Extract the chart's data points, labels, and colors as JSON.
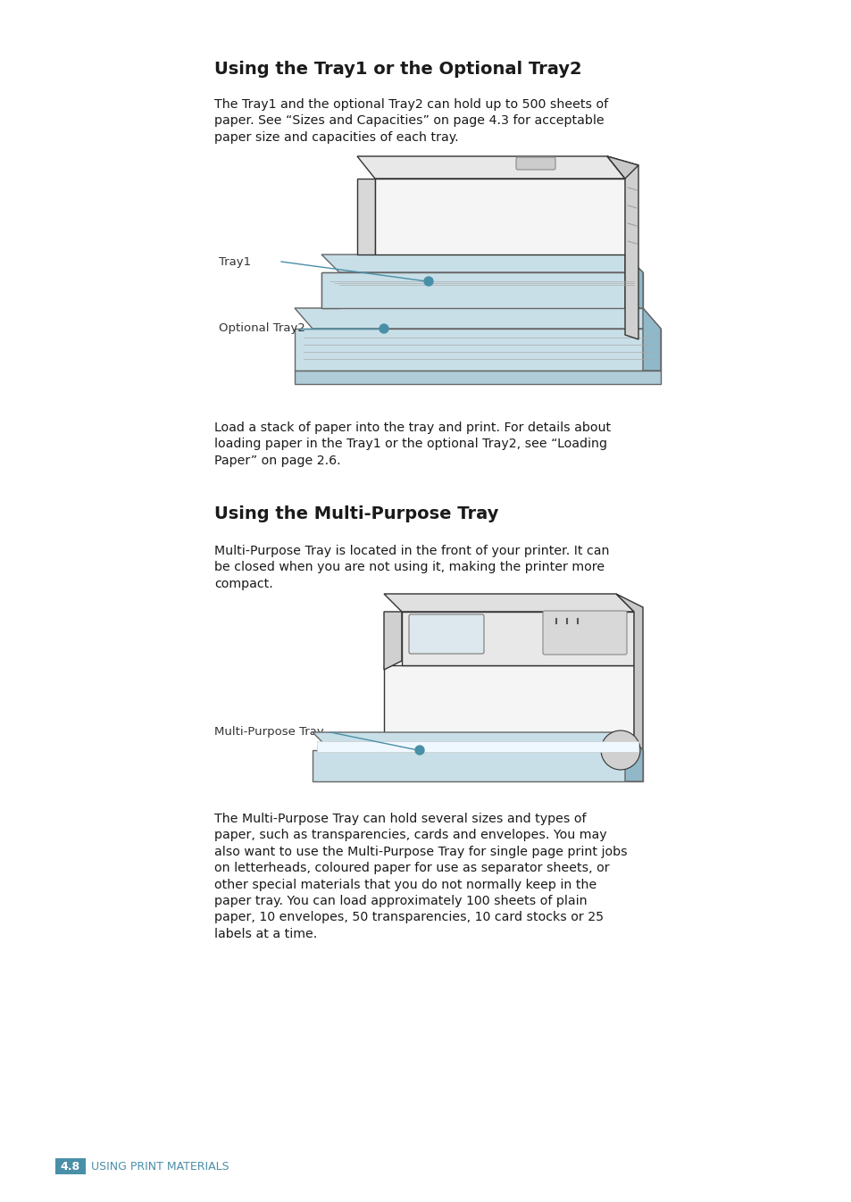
{
  "bg_color": "#ffffff",
  "page_width": 9.54,
  "page_height": 13.46,
  "section1_title": "Using the Tray1 or the Optional Tray2",
  "section1_body1": "The Tray1 and the optional Tray2 can hold up to 500 sheets of\npaper. See “Sizes and Capacities” on page 4.3 for acceptable\npaper size and capacities of each tray.",
  "label_tray1": "Tray1",
  "label_opt_tray2": "Optional Tray2",
  "section1_body2": "Load a stack of paper into the tray and print. For details about\nloading paper in the Tray1 or the optional Tray2, see “Loading\nPaper” on page 2.6.",
  "section2_title": "Using the Multi-Purpose Tray",
  "section2_body1": "Multi-Purpose Tray is located in the front of your printer. It can\nbe closed when you are not using it, making the printer more\ncompact.",
  "label_mpt": "Multi-Purpose Tray",
  "section2_body2": "The Multi-Purpose Tray can hold several sizes and types of\npaper, such as transparencies, cards and envelopes. You may\nalso want to use the Multi-Purpose Tray for single page print jobs\non letterheads, coloured paper for use as separator sheets, or\nother special materials that you do not normally keep in the\npaper tray. You can load approximately 100 sheets of plain\npaper, 10 envelopes, 50 transparencies, 10 card stocks or 25\nlabels at a time.",
  "footer_num": "4.8",
  "footer_text": "USING PRINT MATERIALS",
  "footer_num_bg": "#4a8fa8",
  "footer_num_color": "#ffffff",
  "footer_text_color": "#4a8fa8",
  "title_fontsize": 14,
  "body_fontsize": 10.2,
  "label_fontsize": 9.5,
  "footer_fontsize": 9,
  "title_color": "#000000",
  "body_color": "#1a1a1a",
  "line_color": "#4a8fa8",
  "dot_color": "#4a8fa8",
  "printer_edge": "#333333",
  "printer_face": "#f5f5f5",
  "tray_fill": "#c8dfe8",
  "tray_edge": "#666666"
}
